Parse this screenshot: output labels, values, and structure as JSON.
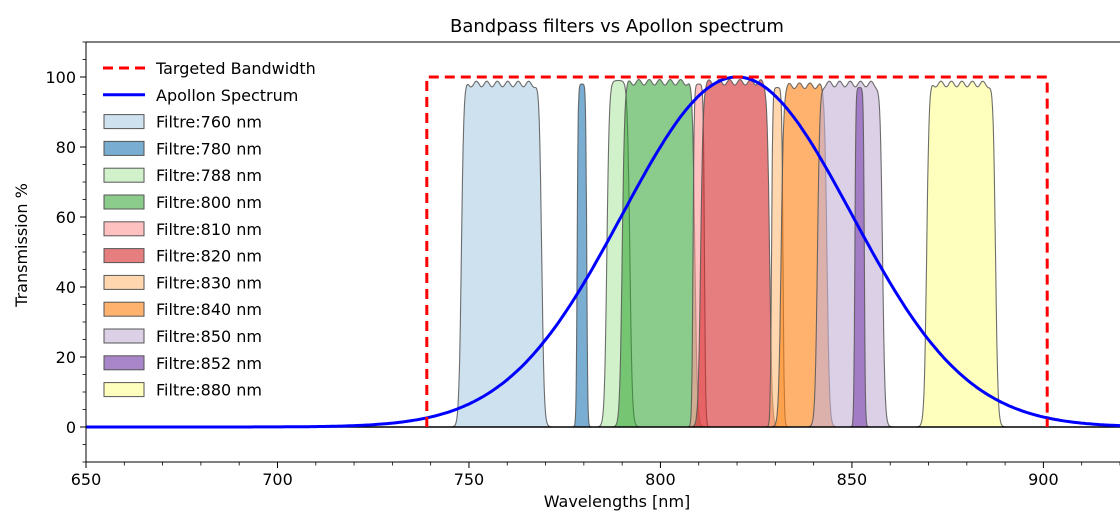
{
  "chart_data": {
    "type": "area",
    "title": "Bandpass filters vs Apollon spectrum",
    "xlabel": "Wavelengths [nm]",
    "ylabel": "Transmission %",
    "xlim": [
      650,
      920
    ],
    "ylim": [
      -10,
      110
    ],
    "xticks": [
      650,
      700,
      750,
      800,
      850,
      900
    ],
    "yticks": [
      0,
      20,
      40,
      60,
      80,
      100
    ],
    "legend_position": "upper-left",
    "grid": false,
    "targeted_bandwidth": {
      "name": "Targeted Bandwidth",
      "color": "#ff0000",
      "x": [
        739,
        739,
        901,
        901
      ],
      "y": [
        0,
        100,
        100,
        0
      ]
    },
    "apollon_spectrum": {
      "name": "Apollon Spectrum",
      "color": "#0000ff",
      "center_nm": 820,
      "peak": 100,
      "sigma_nm": 30
    },
    "filters": [
      {
        "name": "Filtre:760 nm",
        "center": 758.5,
        "width": 21,
        "peak": 98,
        "color": "#1f77b4",
        "alpha": 0.22
      },
      {
        "name": "Filtre:780 nm",
        "center": 779.5,
        "width": 2.5,
        "peak": 98,
        "color": "#1f77b4",
        "alpha": 0.6
      },
      {
        "name": "Filtre:788 nm",
        "center": 789,
        "width": 6,
        "peak": 99,
        "color": "#98df8a",
        "alpha": 0.45
      },
      {
        "name": "Filtre:800 nm",
        "center": 799.5,
        "width": 19,
        "peak": 98.5,
        "color": "#2ca02c",
        "alpha": 0.55
      },
      {
        "name": "Filtre:810 nm",
        "center": 810,
        "width": 3,
        "peak": 98,
        "color": "#ff9896",
        "alpha": 0.6
      },
      {
        "name": "Filtre:820 nm",
        "center": 819.5,
        "width": 18,
        "peak": 98.5,
        "color": "#d62728",
        "alpha": 0.6
      },
      {
        "name": "Filtre:830 nm",
        "center": 830.5,
        "width": 3,
        "peak": 97,
        "color": "#ffbb78",
        "alpha": 0.6
      },
      {
        "name": "Filtre:840 nm",
        "center": 837.5,
        "width": 12,
        "peak": 97.5,
        "color": "#ff7f0e",
        "alpha": 0.6
      },
      {
        "name": "Filtre:850 nm",
        "center": 849.5,
        "width": 17,
        "peak": 98,
        "color": "#c5b0d5",
        "alpha": 0.6
      },
      {
        "name": "Filtre:852 nm",
        "center": 852,
        "width": 2.5,
        "peak": 97,
        "color": "#9467bd",
        "alpha": 0.8
      },
      {
        "name": "Filtre:880 nm",
        "center": 878.5,
        "width": 18,
        "peak": 98,
        "color": "#ffff99",
        "alpha": 0.65
      }
    ]
  }
}
